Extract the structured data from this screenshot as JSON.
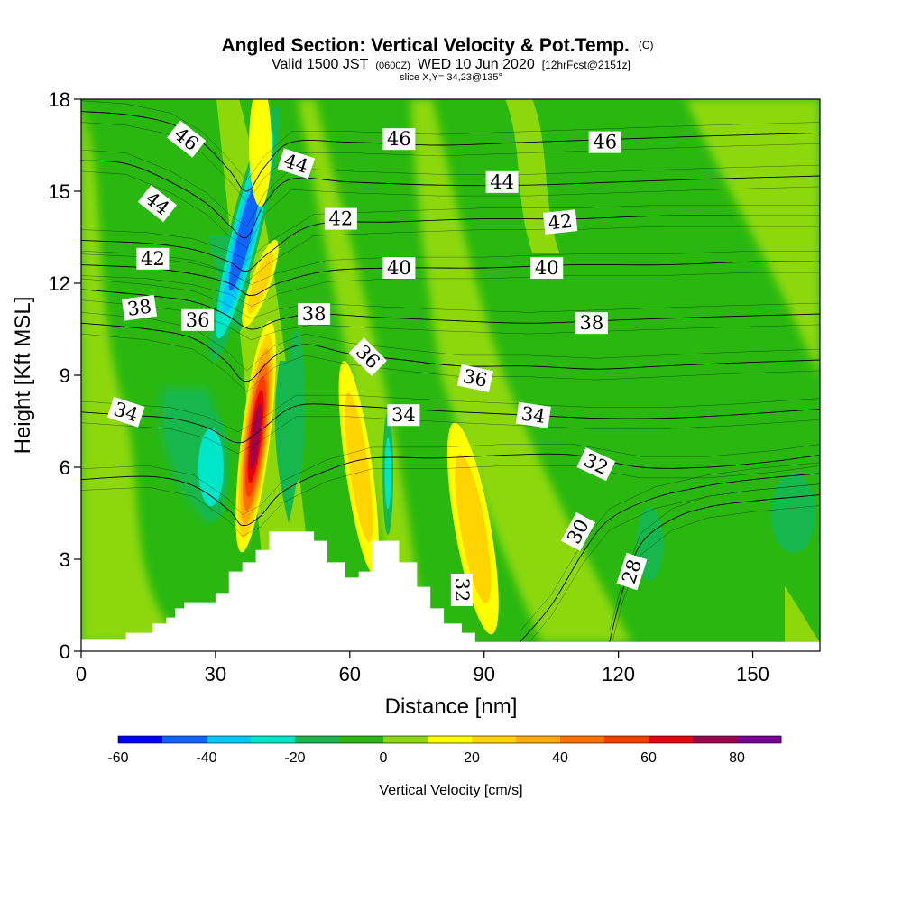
{
  "chart_data": {
    "type": "heatmap",
    "title": "Angled Section: Vertical Velocity & Pot.Temp.",
    "title_mark": "(C)",
    "subtitle": {
      "part1": "Valid 1500 JST",
      "part2": "(0600Z)",
      "part3": "WED 10 Jun 2020",
      "part4": "[12hrFcst@2151z]"
    },
    "slice_label": "slice X,Y= 34,23@135°",
    "xlabel": "Distance [nm]",
    "ylabel": "Height [Kft MSL]",
    "xlim": [
      0,
      165
    ],
    "ylim": [
      0,
      18
    ],
    "x_ticks": [
      0,
      30,
      60,
      90,
      120,
      150
    ],
    "y_ticks": [
      0,
      3,
      6,
      9,
      12,
      15,
      18
    ],
    "terrain": [
      [
        0,
        0.4
      ],
      [
        10,
        0.4
      ],
      [
        10,
        0.6
      ],
      [
        16,
        0.6
      ],
      [
        16,
        0.9
      ],
      [
        19,
        0.9
      ],
      [
        19,
        1.1
      ],
      [
        21,
        1.1
      ],
      [
        21,
        1.4
      ],
      [
        23,
        1.4
      ],
      [
        23,
        1.6
      ],
      [
        30,
        1.6
      ],
      [
        30,
        1.9
      ],
      [
        33,
        1.9
      ],
      [
        33,
        2.6
      ],
      [
        36,
        2.6
      ],
      [
        36,
        2.9
      ],
      [
        39,
        2.9
      ],
      [
        39,
        3.3
      ],
      [
        42,
        3.3
      ],
      [
        42,
        3.9
      ],
      [
        52,
        3.9
      ],
      [
        52,
        3.6
      ],
      [
        55,
        3.6
      ],
      [
        55,
        2.9
      ],
      [
        59,
        2.9
      ],
      [
        59,
        2.4
      ],
      [
        62,
        2.4
      ],
      [
        62,
        2.6
      ],
      [
        65,
        2.6
      ],
      [
        65,
        3.6
      ],
      [
        71,
        3.6
      ],
      [
        71,
        2.9
      ],
      [
        75,
        2.9
      ],
      [
        75,
        2.1
      ],
      [
        78,
        2.1
      ],
      [
        78,
        1.4
      ],
      [
        81,
        1.4
      ],
      [
        81,
        0.9
      ],
      [
        85,
        0.9
      ],
      [
        85,
        0.6
      ],
      [
        88,
        0.6
      ],
      [
        88,
        0.3
      ],
      [
        165,
        0.3
      ]
    ],
    "velocity_cells": [
      {
        "x": 36.5,
        "y": 13.6,
        "rx": 3.5,
        "ry": 4.3,
        "rot": 14,
        "w": -48
      },
      {
        "x": 39.0,
        "y": 7.0,
        "rx": 3.2,
        "ry": 3.8,
        "rot": 7,
        "w": 72
      },
      {
        "x": 40.0,
        "y": 12.0,
        "rx": 2.2,
        "ry": 1.5,
        "rot": 20,
        "w": 22
      },
      {
        "x": 29.0,
        "y": 6.0,
        "rx": 4.0,
        "ry": 1.8,
        "rot": 0,
        "w": -22
      },
      {
        "x": 40.0,
        "y": 16.5,
        "rx": 2.5,
        "ry": 2.0,
        "rot": 0,
        "w": 16
      },
      {
        "x": 48.0,
        "y": 8.0,
        "rx": 2.0,
        "ry": 2.5,
        "rot": 0,
        "w": -18
      },
      {
        "x": 62.0,
        "y": 6.0,
        "rx": 3.0,
        "ry": 3.5,
        "rot": -8,
        "w": 22
      },
      {
        "x": 68.5,
        "y": 5.8,
        "rx": 1.2,
        "ry": 2.0,
        "rot": 0,
        "w": -20
      },
      {
        "x": 87.5,
        "y": 4.0,
        "rx": 4.0,
        "ry": 3.5,
        "rot": -10,
        "w": 26
      },
      {
        "x": 127.0,
        "y": 3.5,
        "rx": 3.0,
        "ry": 1.2,
        "rot": 0,
        "w": -12
      },
      {
        "x": 159.0,
        "y": 4.5,
        "rx": 5.0,
        "ry": 1.3,
        "rot": 0,
        "w": -12
      }
    ],
    "isentropes": [
      {
        "theta": 28,
        "points": [
          [
            118,
            0.3
          ],
          [
            121,
            2.0
          ],
          [
            125,
            3.5
          ],
          [
            132,
            4.3
          ],
          [
            140,
            4.7
          ],
          [
            150,
            4.9
          ],
          [
            165,
            5.1
          ]
        ]
      },
      {
        "theta": 30,
        "points": [
          [
            98,
            0.3
          ],
          [
            105,
            1.5
          ],
          [
            112,
            3.2
          ],
          [
            118,
            4.3
          ],
          [
            128,
            5.0
          ],
          [
            140,
            5.4
          ],
          [
            150,
            5.6
          ],
          [
            165,
            5.8
          ]
        ]
      },
      {
        "theta": 32,
        "points": [
          [
            0,
            5.6
          ],
          [
            15,
            5.7
          ],
          [
            25,
            5.4
          ],
          [
            33,
            4.6
          ],
          [
            36,
            4.1
          ],
          [
            40,
            4.4
          ],
          [
            45,
            5.2
          ],
          [
            55,
            5.9
          ],
          [
            65,
            6.3
          ],
          [
            80,
            6.3
          ],
          [
            95,
            6.4
          ],
          [
            110,
            6.4
          ],
          [
            125,
            6.0
          ],
          [
            140,
            6.0
          ],
          [
            155,
            6.2
          ],
          [
            165,
            6.4
          ]
        ]
      },
      {
        "theta": 34,
        "points": [
          [
            0,
            7.8
          ],
          [
            10,
            7.7
          ],
          [
            20,
            7.6
          ],
          [
            28,
            7.3
          ],
          [
            35,
            6.8
          ],
          [
            40,
            7.2
          ],
          [
            48,
            8.0
          ],
          [
            60,
            8.0
          ],
          [
            72,
            7.9
          ],
          [
            85,
            7.8
          ],
          [
            100,
            7.7
          ],
          [
            115,
            7.6
          ],
          [
            130,
            7.6
          ],
          [
            145,
            7.7
          ],
          [
            165,
            7.9
          ]
        ]
      },
      {
        "theta": 36,
        "points": [
          [
            0,
            10.7
          ],
          [
            15,
            10.5
          ],
          [
            25,
            10.2
          ],
          [
            32,
            9.5
          ],
          [
            37,
            8.8
          ],
          [
            43,
            9.6
          ],
          [
            50,
            10.0
          ],
          [
            60,
            9.7
          ],
          [
            72,
            9.5
          ],
          [
            85,
            9.3
          ],
          [
            100,
            9.3
          ],
          [
            115,
            9.2
          ],
          [
            130,
            9.3
          ],
          [
            145,
            9.4
          ],
          [
            165,
            9.5
          ]
        ]
      },
      {
        "theta": 38,
        "points": [
          [
            0,
            11.8
          ],
          [
            15,
            11.6
          ],
          [
            25,
            11.4
          ],
          [
            32,
            11.0
          ],
          [
            38,
            10.5
          ],
          [
            44,
            10.8
          ],
          [
            52,
            11.0
          ],
          [
            65,
            10.9
          ],
          [
            80,
            10.8
          ],
          [
            100,
            10.7
          ],
          [
            120,
            10.8
          ],
          [
            140,
            10.9
          ],
          [
            165,
            11.0
          ]
        ]
      },
      {
        "theta": 40,
        "points": [
          [
            0,
            12.6
          ],
          [
            15,
            12.5
          ],
          [
            25,
            12.3
          ],
          [
            33,
            12.0
          ],
          [
            38,
            11.6
          ],
          [
            44,
            12.0
          ],
          [
            55,
            12.4
          ],
          [
            70,
            12.5
          ],
          [
            90,
            12.5
          ],
          [
            110,
            12.6
          ],
          [
            130,
            12.6
          ],
          [
            150,
            12.7
          ],
          [
            165,
            12.7
          ]
        ]
      },
      {
        "theta": 42,
        "points": [
          [
            0,
            13.4
          ],
          [
            15,
            13.3
          ],
          [
            25,
            13.1
          ],
          [
            33,
            12.7
          ],
          [
            37,
            12.4
          ],
          [
            42,
            13.0
          ],
          [
            52,
            13.9
          ],
          [
            70,
            14.0
          ],
          [
            90,
            14.1
          ],
          [
            110,
            14.1
          ],
          [
            130,
            14.2
          ],
          [
            150,
            14.2
          ],
          [
            165,
            14.2
          ]
        ]
      },
      {
        "theta": 44,
        "points": [
          [
            0,
            16.0
          ],
          [
            10,
            15.9
          ],
          [
            20,
            15.3
          ],
          [
            28,
            14.6
          ],
          [
            33,
            13.9
          ],
          [
            37,
            13.5
          ],
          [
            41,
            14.6
          ],
          [
            47,
            15.4
          ],
          [
            60,
            15.3
          ],
          [
            80,
            15.2
          ],
          [
            100,
            15.2
          ],
          [
            120,
            15.3
          ],
          [
            140,
            15.4
          ],
          [
            165,
            15.5
          ]
        ]
      },
      {
        "theta": 46,
        "points": [
          [
            0,
            17.6
          ],
          [
            10,
            17.5
          ],
          [
            20,
            17.2
          ],
          [
            27,
            16.6
          ],
          [
            33,
            15.7
          ],
          [
            37,
            15.0
          ],
          [
            41,
            15.8
          ],
          [
            47,
            16.6
          ],
          [
            60,
            16.6
          ],
          [
            80,
            16.5
          ],
          [
            100,
            16.6
          ],
          [
            120,
            16.7
          ],
          [
            140,
            16.8
          ],
          [
            165,
            16.9
          ]
        ]
      }
    ],
    "contour_labels": [
      {
        "text": "46",
        "x": 23.5,
        "y": 16.7,
        "angle": 38
      },
      {
        "text": "44",
        "x": 17.0,
        "y": 14.6,
        "angle": 38
      },
      {
        "text": "42",
        "x": 16.0,
        "y": 12.8,
        "angle": 0
      },
      {
        "text": "38",
        "x": 13.0,
        "y": 11.2,
        "angle": -8
      },
      {
        "text": "36",
        "x": 26.0,
        "y": 10.8,
        "angle": 0
      },
      {
        "text": "34",
        "x": 10.0,
        "y": 7.8,
        "angle": 18
      },
      {
        "text": "44",
        "x": 48.0,
        "y": 15.9,
        "angle": 18
      },
      {
        "text": "46",
        "x": 71.0,
        "y": 16.7,
        "angle": 0
      },
      {
        "text": "46",
        "x": 117.0,
        "y": 16.6,
        "angle": 0
      },
      {
        "text": "44",
        "x": 94.0,
        "y": 15.3,
        "angle": 0
      },
      {
        "text": "42",
        "x": 58.0,
        "y": 14.1,
        "angle": 0
      },
      {
        "text": "42",
        "x": 107.0,
        "y": 14.0,
        "angle": -6
      },
      {
        "text": "40",
        "x": 71.0,
        "y": 12.5,
        "angle": 0
      },
      {
        "text": "40",
        "x": 104.0,
        "y": 12.5,
        "angle": 0
      },
      {
        "text": "38",
        "x": 52.0,
        "y": 11.0,
        "angle": 0
      },
      {
        "text": "38",
        "x": 114.0,
        "y": 10.7,
        "angle": 0
      },
      {
        "text": "36",
        "x": 64.0,
        "y": 9.6,
        "angle": 45
      },
      {
        "text": "36",
        "x": 88.0,
        "y": 8.9,
        "angle": 12
      },
      {
        "text": "34",
        "x": 72.0,
        "y": 7.7,
        "angle": 0
      },
      {
        "text": "34",
        "x": 101.0,
        "y": 7.7,
        "angle": 8
      },
      {
        "text": "32",
        "x": 115.0,
        "y": 6.1,
        "angle": 25
      },
      {
        "text": "30",
        "x": 111.0,
        "y": 3.9,
        "angle": -62
      },
      {
        "text": "28",
        "x": 123.0,
        "y": 2.6,
        "angle": -72
      },
      {
        "text": "32",
        "x": 85.0,
        "y": 2.0,
        "angle": 90
      }
    ]
  },
  "colorbar": {
    "label": "Vertical Velocity [cm/s]",
    "levels": [
      -60,
      -50,
      -40,
      -30,
      -20,
      -10,
      0,
      10,
      20,
      30,
      40,
      50,
      60,
      70,
      80,
      90
    ],
    "tick_labels": [
      "-60",
      "-40",
      "-20",
      "0",
      "20",
      "40",
      "60",
      "80"
    ],
    "colors": [
      "#0000ff",
      "#0f64ff",
      "#00c8ff",
      "#00e6c8",
      "#16b84e",
      "#2ab810",
      "#8cd80a",
      "#ffff00",
      "#ffd400",
      "#ffaa00",
      "#ff7000",
      "#ff3c00",
      "#e60010",
      "#a0004a",
      "#780096"
    ]
  }
}
